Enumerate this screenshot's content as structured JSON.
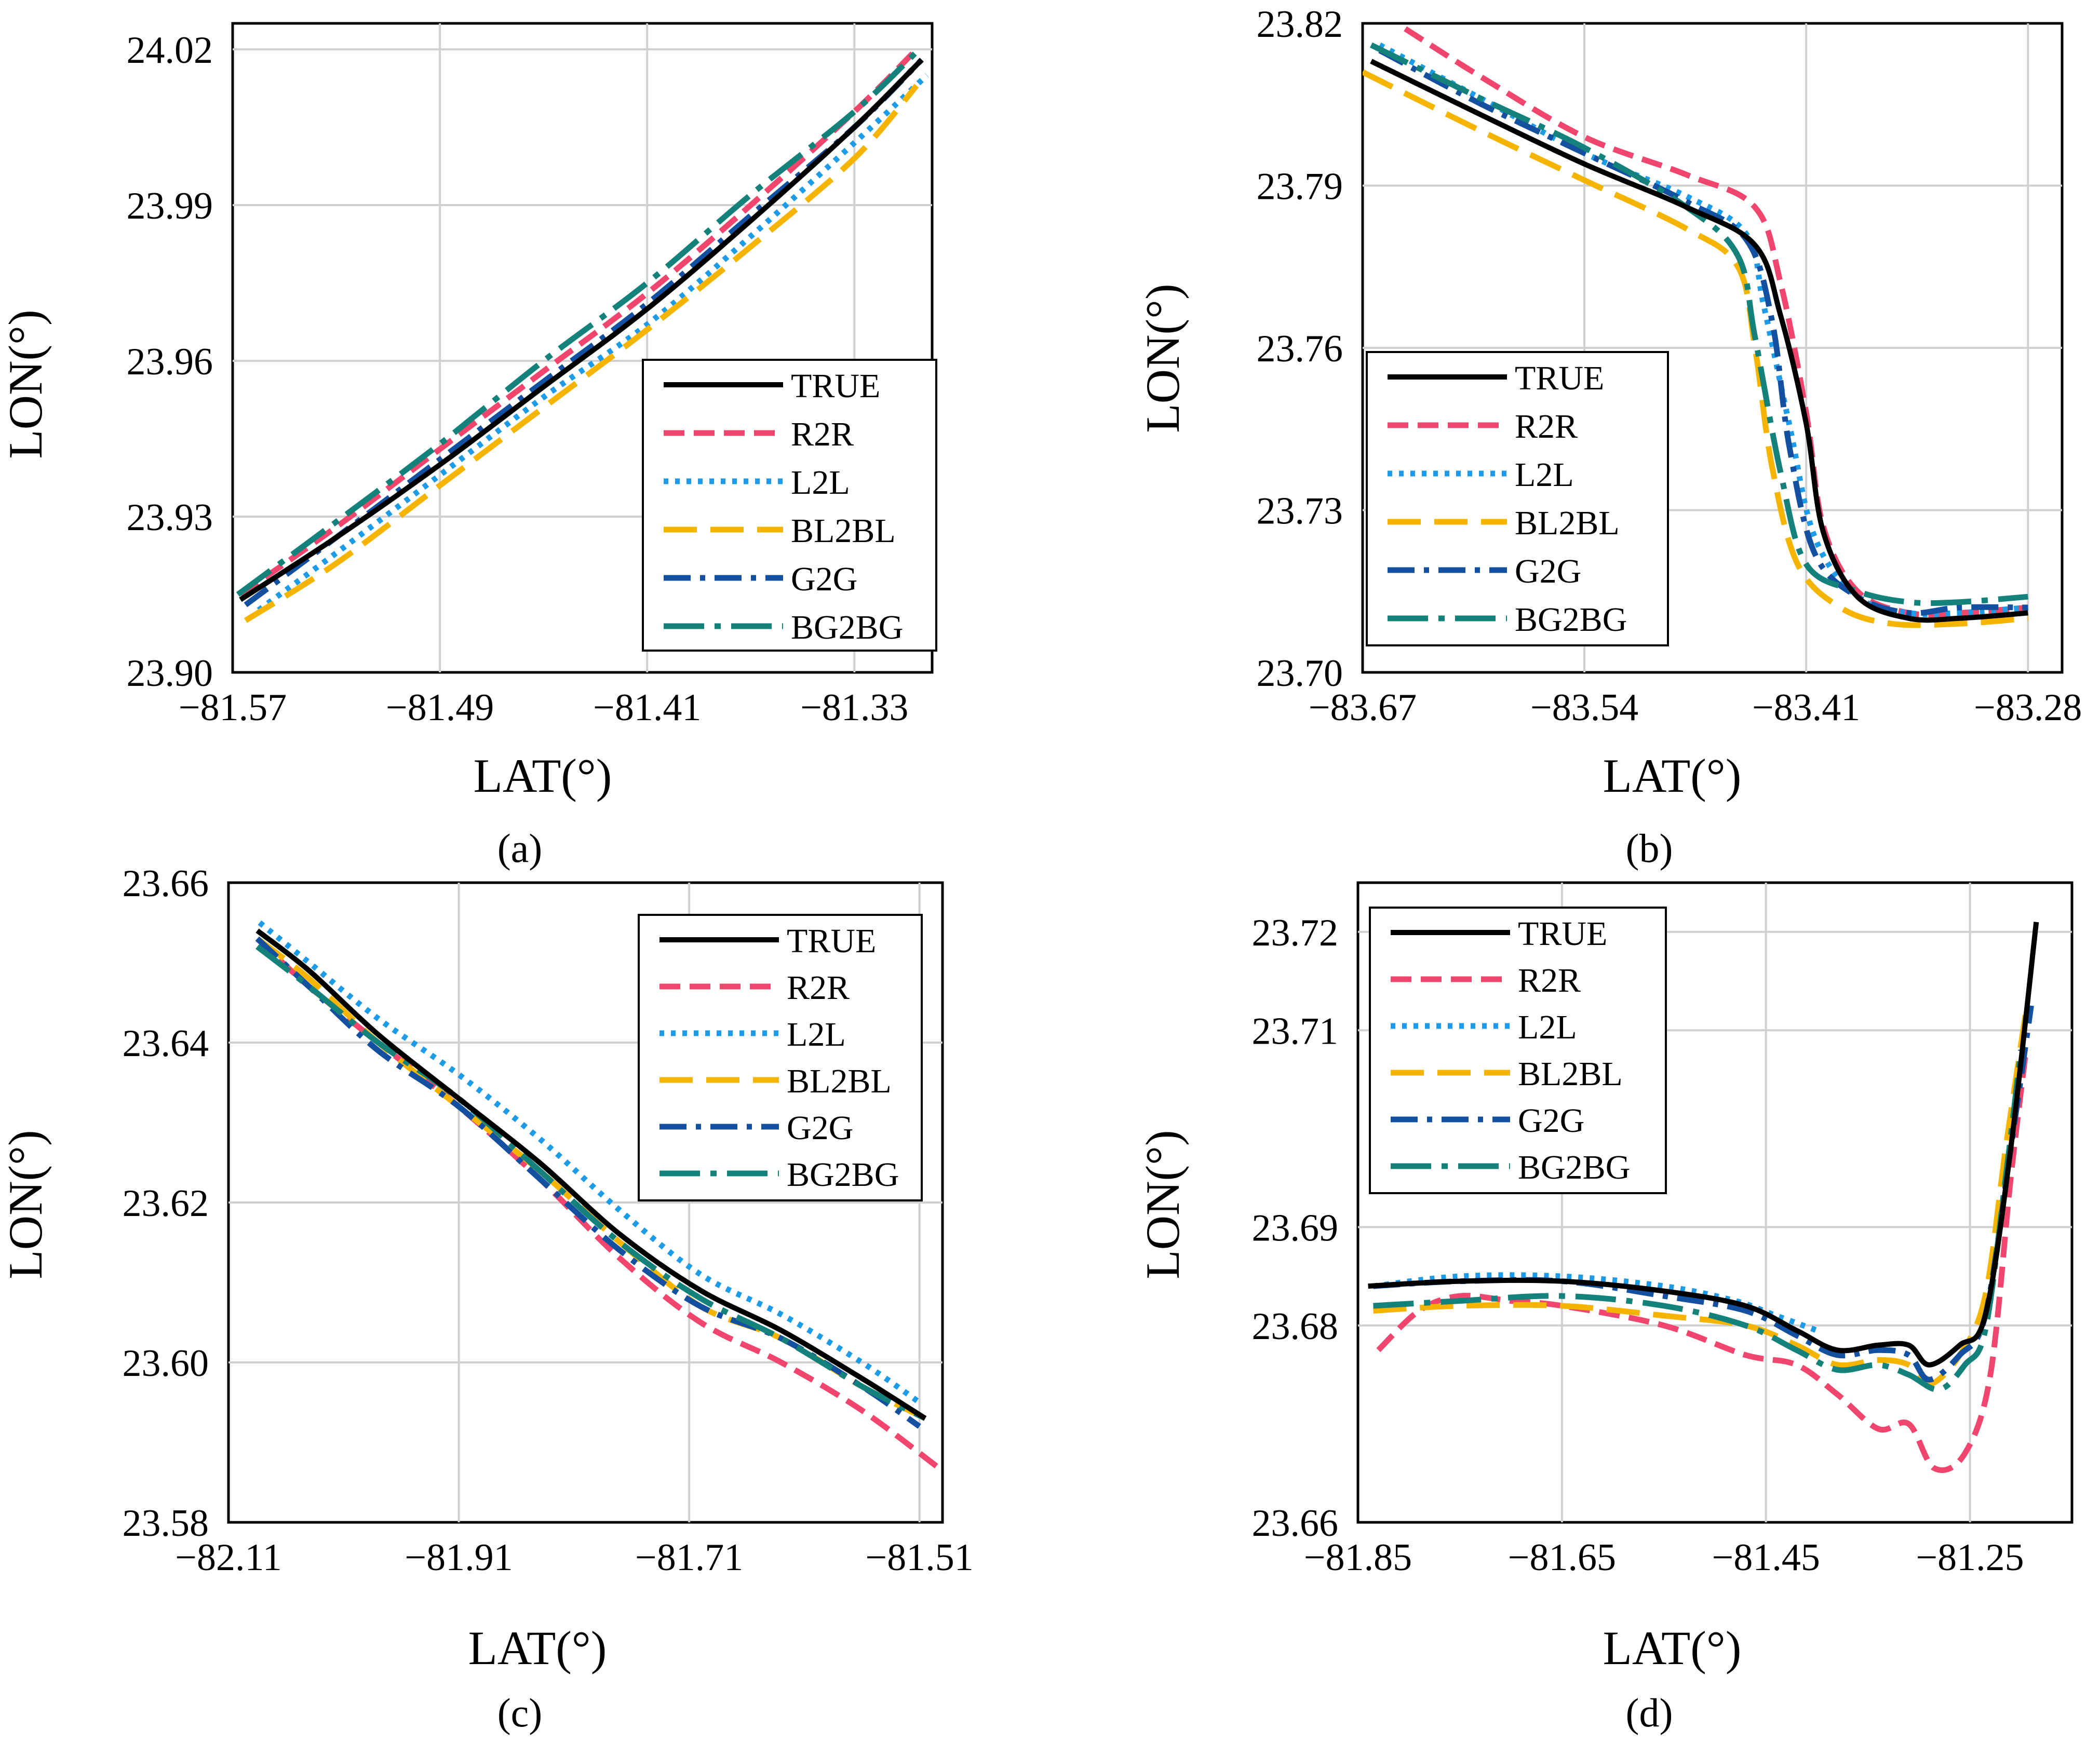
{
  "figure": {
    "series_styles": [
      {
        "name": "TRUE",
        "color": "#000000",
        "dash": "solid"
      },
      {
        "name": "R2R",
        "color": "#f0466e",
        "dash": "short-dash"
      },
      {
        "name": "L2L",
        "color": "#1e9be6",
        "dash": "dot"
      },
      {
        "name": "BL2BL",
        "color": "#f5b400",
        "dash": "long-dash"
      },
      {
        "name": "G2G",
        "color": "#1450a0",
        "dash": "dash-dot"
      },
      {
        "name": "BG2BG",
        "color": "#14827a",
        "dash": "long-dash-dot"
      }
    ],
    "grid_color": "#d0d0d0"
  },
  "chart_data": [
    {
      "type": "line",
      "panel_label": "(a)",
      "xlabel": "LAT(°)",
      "ylabel": "LON(°)",
      "xlim": [
        -81.57,
        -81.3
      ],
      "ylim": [
        23.9,
        24.025
      ],
      "x_ticks": [
        -81.57,
        -81.49,
        -81.41,
        -81.33
      ],
      "x_tick_labels": [
        "−81.57",
        "−81.49",
        "−81.41",
        "−81.33"
      ],
      "y_ticks": [
        23.9,
        23.93,
        23.96,
        23.99,
        24.02
      ],
      "y_tick_labels": [
        "23.90",
        "23.93",
        "23.96",
        "23.99",
        "24.02"
      ],
      "grid": true,
      "legend_position": "bottom-right",
      "series": [
        {
          "name": "TRUE",
          "x": [
            -81.567,
            -81.53,
            -81.49,
            -81.45,
            -81.41,
            -81.37,
            -81.33,
            -81.304
          ],
          "y": [
            23.914,
            23.926,
            23.94,
            23.955,
            23.97,
            23.987,
            24.005,
            24.018
          ]
        },
        {
          "name": "R2R",
          "x": [
            -81.567,
            -81.53,
            -81.49,
            -81.45,
            -81.41,
            -81.37,
            -81.33,
            -81.306
          ],
          "y": [
            23.915,
            23.928,
            23.943,
            23.958,
            23.973,
            23.99,
            24.008,
            24.02
          ]
        },
        {
          "name": "L2L",
          "x": [
            -81.56,
            -81.53,
            -81.49,
            -81.45,
            -81.41,
            -81.37,
            -81.33,
            -81.302
          ],
          "y": [
            23.912,
            23.923,
            23.938,
            23.953,
            23.967,
            23.984,
            24.002,
            24.015
          ]
        },
        {
          "name": "BL2BL",
          "x": [
            -81.565,
            -81.53,
            -81.49,
            -81.45,
            -81.41,
            -81.37,
            -81.33,
            -81.306
          ],
          "y": [
            23.91,
            23.921,
            23.936,
            23.951,
            23.966,
            23.982,
            23.999,
            24.013
          ]
        },
        {
          "name": "G2G",
          "x": [
            -81.565,
            -81.53,
            -81.49,
            -81.45,
            -81.41,
            -81.37,
            -81.33,
            -81.304
          ],
          "y": [
            23.913,
            23.926,
            23.941,
            23.956,
            23.971,
            23.988,
            24.005,
            24.018
          ]
        },
        {
          "name": "BG2BG",
          "x": [
            -81.568,
            -81.53,
            -81.49,
            -81.45,
            -81.41,
            -81.37,
            -81.33,
            -81.305
          ],
          "y": [
            23.915,
            23.929,
            23.944,
            23.96,
            23.975,
            23.992,
            24.008,
            24.02
          ]
        }
      ]
    },
    {
      "type": "line",
      "panel_label": "(b)",
      "xlabel": "LAT(°)",
      "ylabel": "LON(°)",
      "xlim": [
        -83.67,
        -83.26
      ],
      "ylim": [
        23.7,
        23.82
      ],
      "x_ticks": [
        -83.67,
        -83.54,
        -83.41,
        -83.28
      ],
      "x_tick_labels": [
        "−83.67",
        "−83.54",
        "−83.41",
        "−83.28"
      ],
      "y_ticks": [
        23.7,
        23.73,
        23.76,
        23.79,
        23.82
      ],
      "y_tick_labels": [
        "23.70",
        "23.73",
        "23.76",
        "23.79",
        "23.82"
      ],
      "grid": true,
      "legend_position": "bottom-left",
      "series": [
        {
          "name": "TRUE",
          "x": [
            -83.665,
            -83.6,
            -83.54,
            -83.48,
            -83.44,
            -83.425,
            -83.41,
            -83.4,
            -83.38,
            -83.35,
            -83.32,
            -83.28
          ],
          "y": [
            23.813,
            23.803,
            23.794,
            23.786,
            23.779,
            23.766,
            23.746,
            23.726,
            23.714,
            23.71,
            23.71,
            23.711
          ]
        },
        {
          "name": "R2R",
          "x": [
            -83.645,
            -83.6,
            -83.54,
            -83.48,
            -83.44,
            -83.425,
            -83.41,
            -83.4,
            -83.38,
            -83.35,
            -83.32,
            -83.28
          ],
          "y": [
            23.819,
            23.81,
            23.799,
            23.792,
            23.786,
            23.772,
            23.748,
            23.727,
            23.715,
            23.711,
            23.711,
            23.712
          ]
        },
        {
          "name": "L2L",
          "x": [
            -83.66,
            -83.6,
            -83.54,
            -83.48,
            -83.445,
            -83.435,
            -83.42,
            -83.405,
            -83.38,
            -83.35,
            -83.32,
            -83.28
          ],
          "y": [
            23.816,
            23.806,
            23.796,
            23.788,
            23.781,
            23.768,
            23.746,
            23.725,
            23.714,
            23.711,
            23.711,
            23.712
          ]
        },
        {
          "name": "BL2BL",
          "x": [
            -83.67,
            -83.6,
            -83.54,
            -83.48,
            -83.45,
            -83.44,
            -83.43,
            -83.415,
            -83.39,
            -83.36,
            -83.32,
            -83.28
          ],
          "y": [
            23.811,
            23.8,
            23.791,
            23.782,
            23.775,
            23.76,
            23.738,
            23.72,
            23.712,
            23.709,
            23.709,
            23.71
          ]
        },
        {
          "name": "G2G",
          "x": [
            -83.66,
            -83.6,
            -83.54,
            -83.48,
            -83.445,
            -83.43,
            -83.42,
            -83.405,
            -83.38,
            -83.35,
            -83.32,
            -83.28
          ],
          "y": [
            23.815,
            23.805,
            23.796,
            23.787,
            23.78,
            23.765,
            23.742,
            23.722,
            23.714,
            23.711,
            23.712,
            23.712
          ]
        },
        {
          "name": "BG2BG",
          "x": [
            -83.665,
            -83.6,
            -83.54,
            -83.48,
            -83.45,
            -83.44,
            -83.425,
            -83.41,
            -83.38,
            -83.35,
            -83.32,
            -83.28
          ],
          "y": [
            23.816,
            23.806,
            23.797,
            23.786,
            23.777,
            23.762,
            23.737,
            23.72,
            23.715,
            23.713,
            23.713,
            23.714
          ]
        }
      ]
    },
    {
      "type": "line",
      "panel_label": "(c)",
      "xlabel": "LAT(°)",
      "ylabel": "LON(°)",
      "xlim": [
        -82.11,
        -81.49
      ],
      "ylim": [
        23.58,
        23.66
      ],
      "x_ticks": [
        -82.11,
        -81.91,
        -81.71,
        -81.51
      ],
      "x_tick_labels": [
        "−82.11",
        "−81.91",
        "−81.71",
        "−81.51"
      ],
      "y_ticks": [
        23.58,
        23.6,
        23.62,
        23.64,
        23.66
      ],
      "y_tick_labels": [
        "23.58",
        "23.60",
        "23.62",
        "23.64",
        "23.66"
      ],
      "grid": true,
      "legend_position": "top-right",
      "series": [
        {
          "name": "TRUE",
          "x": [
            -82.085,
            -82.04,
            -81.98,
            -81.91,
            -81.84,
            -81.77,
            -81.7,
            -81.63,
            -81.56,
            -81.505
          ],
          "y": [
            23.654,
            23.649,
            23.641,
            23.633,
            23.625,
            23.616,
            23.609,
            23.604,
            23.598,
            23.593
          ]
        },
        {
          "name": "R2R",
          "x": [
            -82.085,
            -82.04,
            -81.98,
            -81.91,
            -81.84,
            -81.77,
            -81.7,
            -81.63,
            -81.56,
            -81.495
          ],
          "y": [
            23.653,
            23.647,
            23.64,
            23.632,
            23.623,
            23.613,
            23.605,
            23.6,
            23.594,
            23.587
          ]
        },
        {
          "name": "L2L",
          "x": [
            -82.083,
            -82.04,
            -81.98,
            -81.91,
            -81.84,
            -81.77,
            -81.7,
            -81.63,
            -81.56,
            -81.51
          ],
          "y": [
            23.655,
            23.65,
            23.643,
            23.636,
            23.628,
            23.619,
            23.611,
            23.606,
            23.6,
            23.595
          ]
        },
        {
          "name": "BL2BL",
          "x": [
            -82.085,
            -82.04,
            -81.98,
            -81.91,
            -81.84,
            -81.77,
            -81.7,
            -81.63,
            -81.56,
            -81.505
          ],
          "y": [
            23.653,
            23.648,
            23.64,
            23.632,
            23.624,
            23.615,
            23.607,
            23.603,
            23.597,
            23.593
          ]
        },
        {
          "name": "G2G",
          "x": [
            -82.085,
            -82.04,
            -81.98,
            -81.91,
            -81.84,
            -81.77,
            -81.7,
            -81.63,
            -81.56,
            -81.51
          ],
          "y": [
            23.653,
            23.647,
            23.639,
            23.632,
            23.623,
            23.614,
            23.607,
            23.603,
            23.597,
            23.592
          ]
        },
        {
          "name": "BG2BG",
          "x": [
            -82.085,
            -82.04,
            -81.98,
            -81.91,
            -81.84,
            -81.77,
            -81.7,
            -81.63,
            -81.56,
            -81.505
          ],
          "y": [
            23.652,
            23.647,
            23.64,
            23.633,
            23.624,
            23.615,
            23.608,
            23.603,
            23.597,
            23.593
          ]
        }
      ]
    },
    {
      "type": "line",
      "panel_label": "(d)",
      "xlabel": "LAT(°)",
      "ylabel": "LON(°)",
      "xlim": [
        -81.85,
        -81.15
      ],
      "ylim": [
        23.66,
        23.725
      ],
      "x_ticks": [
        -81.85,
        -81.65,
        -81.45,
        -81.25
      ],
      "x_tick_labels": [
        "−81.85",
        "−81.65",
        "−81.45",
        "−81.25"
      ],
      "y_ticks": [
        23.66,
        23.68,
        23.69,
        23.71,
        23.72
      ],
      "y_tick_labels": [
        "23.66",
        "23.68",
        "23.69",
        "23.71",
        "23.72"
      ],
      "grid": true,
      "legend_position": "top-left",
      "series": [
        {
          "name": "TRUE",
          "x": [
            -81.84,
            -81.75,
            -81.65,
            -81.55,
            -81.47,
            -81.42,
            -81.38,
            -81.34,
            -81.31,
            -81.29,
            -81.26,
            -81.235,
            -81.21,
            -81.185
          ],
          "y": [
            23.684,
            23.6845,
            23.6845,
            23.6835,
            23.682,
            23.6795,
            23.6775,
            23.678,
            23.678,
            23.676,
            23.678,
            23.681,
            23.698,
            23.721
          ]
        },
        {
          "name": "R2R",
          "x": [
            -81.83,
            -81.79,
            -81.75,
            -81.7,
            -81.65,
            -81.55,
            -81.47,
            -81.42,
            -81.38,
            -81.34,
            -81.31,
            -81.285,
            -81.255,
            -81.23,
            -81.21,
            -81.195
          ],
          "y": [
            23.6775,
            23.6815,
            23.683,
            23.6825,
            23.682,
            23.68,
            23.677,
            23.676,
            23.673,
            23.6695,
            23.67,
            23.6655,
            23.667,
            23.675,
            23.695,
            23.708
          ]
        },
        {
          "name": "L2L",
          "x": [
            -81.835,
            -81.75,
            -81.65,
            -81.55,
            -81.48,
            -81.44,
            -81.4
          ],
          "y": [
            23.684,
            23.685,
            23.685,
            23.684,
            23.6825,
            23.681,
            23.6795
          ]
        },
        {
          "name": "BL2BL",
          "x": [
            -81.835,
            -81.75,
            -81.65,
            -81.55,
            -81.47,
            -81.42,
            -81.38,
            -81.34,
            -81.31,
            -81.29,
            -81.26,
            -81.235,
            -81.215,
            -81.195
          ],
          "y": [
            23.6815,
            23.682,
            23.682,
            23.681,
            23.68,
            23.678,
            23.676,
            23.6765,
            23.676,
            23.674,
            23.677,
            23.683,
            23.698,
            23.712
          ]
        },
        {
          "name": "G2G",
          "x": [
            -81.835,
            -81.75,
            -81.65,
            -81.55,
            -81.47,
            -81.42,
            -81.38,
            -81.34,
            -81.31,
            -81.29,
            -81.26,
            -81.235,
            -81.21,
            -81.19
          ],
          "y": [
            23.684,
            23.6845,
            23.6845,
            23.683,
            23.6815,
            23.679,
            23.677,
            23.6775,
            23.677,
            23.6745,
            23.677,
            23.681,
            23.698,
            23.7125
          ]
        },
        {
          "name": "BG2BG",
          "x": [
            -81.835,
            -81.75,
            -81.65,
            -81.55,
            -81.47,
            -81.42,
            -81.38,
            -81.34,
            -81.31,
            -81.28,
            -81.255,
            -81.235,
            -81.215,
            -81.2
          ],
          "y": [
            23.682,
            23.6825,
            23.683,
            23.682,
            23.68,
            23.6775,
            23.6755,
            23.676,
            23.675,
            23.6735,
            23.676,
            23.6795,
            23.695,
            23.708
          ]
        }
      ]
    }
  ]
}
